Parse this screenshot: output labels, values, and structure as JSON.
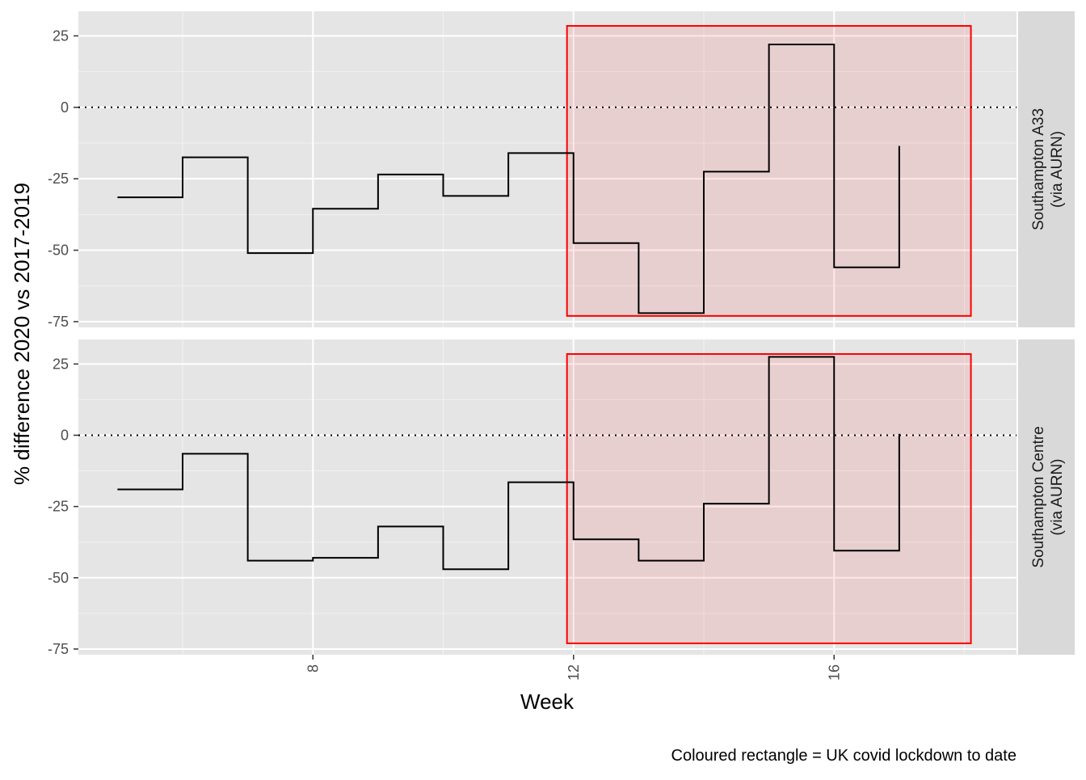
{
  "chart_data": {
    "type": "line",
    "step": true,
    "xlabel": "Week",
    "ylabel": "% difference 2020 vs 2017-2019",
    "caption": "Coloured rectangle = UK covid lockdown to date",
    "x_ticks": [
      8,
      12,
      16
    ],
    "y_ticks": [
      25,
      0,
      -25,
      -50,
      -75
    ],
    "xlim": [
      4.4,
      18.8
    ],
    "grid": true,
    "reference_line": {
      "y": 0,
      "style": "dotted"
    },
    "highlight_rect": {
      "x": [
        11.9,
        18.1
      ],
      "y": [
        -73,
        28.5
      ],
      "stroke": "#ff0000",
      "fill": "#ff000018"
    },
    "panels": [
      {
        "strip_label": [
          "Southampton A33",
          "(via AURN)"
        ],
        "ylim": [
          -77,
          33.6
        ],
        "x": [
          5,
          6,
          7,
          8,
          9,
          10,
          11,
          12,
          13,
          14,
          15,
          16,
          17
        ],
        "values": [
          -31.5,
          -17.5,
          -51,
          -35.5,
          -23.5,
          -31,
          -16,
          -47.5,
          -72,
          -22.5,
          22,
          -56,
          -13.5
        ]
      },
      {
        "strip_label": [
          "Southampton Centre",
          "(via AURN)"
        ],
        "ylim": [
          -77,
          33.6
        ],
        "x": [
          5,
          6,
          7,
          8,
          9,
          10,
          11,
          12,
          13,
          14,
          15,
          16,
          17
        ],
        "values": [
          -19,
          -6.5,
          -44,
          -43,
          -32,
          -47,
          -16.5,
          -36.5,
          -44,
          -24,
          27.5,
          -40.5,
          0.5
        ]
      }
    ]
  }
}
